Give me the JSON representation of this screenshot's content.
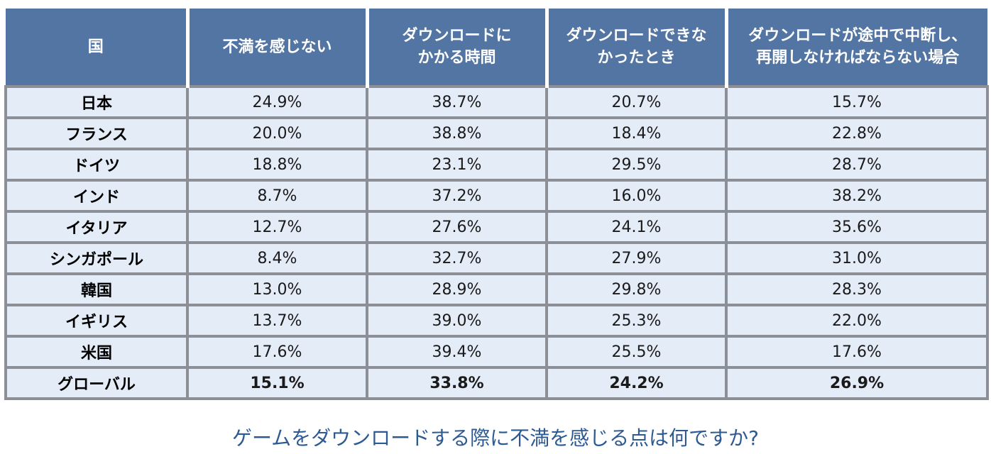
{
  "chart_data": {
    "type": "table",
    "title": "ゲームをダウンロードする際に不満を感じる点は何ですか?",
    "columns": [
      "国",
      "不満を感じない",
      "ダウンロードに\nかかる時間",
      "ダウンロードできな\nかったとき",
      "ダウンロードが途中で中断し、\n再開しなければならない場合"
    ],
    "rows": [
      {
        "country": "日本",
        "values": [
          "24.9%",
          "38.7%",
          "20.7%",
          "15.7%"
        ]
      },
      {
        "country": "フランス",
        "values": [
          "20.0%",
          "38.8%",
          "18.4%",
          "22.8%"
        ]
      },
      {
        "country": "ドイツ",
        "values": [
          "18.8%",
          "23.1%",
          "29.5%",
          "28.7%"
        ]
      },
      {
        "country": "インド",
        "values": [
          "8.7%",
          "37.2%",
          "16.0%",
          "38.2%"
        ]
      },
      {
        "country": "イタリア",
        "values": [
          "12.7%",
          "27.6%",
          "24.1%",
          "35.6%"
        ]
      },
      {
        "country": "シンガポール",
        "values": [
          "8.4%",
          "32.7%",
          "27.9%",
          "31.0%"
        ]
      },
      {
        "country": "韓国",
        "values": [
          "13.0%",
          "28.9%",
          "29.8%",
          "28.3%"
        ]
      },
      {
        "country": "イギリス",
        "values": [
          "13.7%",
          "39.0%",
          "25.3%",
          "22.0%"
        ]
      },
      {
        "country": "米国",
        "values": [
          "17.6%",
          "39.4%",
          "25.5%",
          "17.6%"
        ]
      },
      {
        "country": "グローバル",
        "values": [
          "15.1%",
          "33.8%",
          "24.2%",
          "26.9%"
        ],
        "bold": true
      }
    ],
    "colors": {
      "header_bg": "#5375a3",
      "cell_bg": "#e4ecf8",
      "border": "#8c9096",
      "caption": "#2d5a93"
    }
  }
}
